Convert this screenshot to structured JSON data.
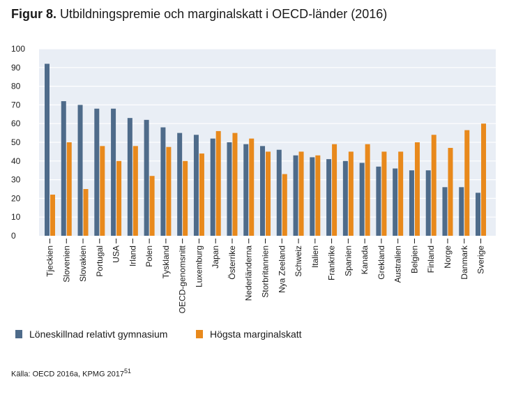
{
  "figure": {
    "label": "Figur 8.",
    "title": "Utbildningspremie och marginalskatt i OECD-länder (2016)"
  },
  "source": {
    "text": "Källa: OECD 2016a, KPMG 2017",
    "footnote": "51"
  },
  "colors": {
    "series1": "#4e6b8a",
    "series2": "#e8891c",
    "plot_bg": "#e9eef5",
    "grid": "#ffffff"
  },
  "chart_data": {
    "type": "bar",
    "title": "Utbildningspremie och marginalskatt i OECD-länder (2016)",
    "xlabel": "",
    "ylabel": "",
    "ylim": [
      0,
      100
    ],
    "yticks": [
      0,
      10,
      20,
      30,
      40,
      50,
      60,
      70,
      80,
      90,
      100
    ],
    "grid": true,
    "legend_position": "bottom",
    "categories": [
      "Tjeckien",
      "Slovenien",
      "Slovakien",
      "Portugal",
      "USA",
      "Irland",
      "Polen",
      "Tyskland",
      "OECD-genomsnitt",
      "Luxemburg",
      "Japan",
      "Österrike",
      "Nederländerna",
      "Storbritannien",
      "Nya Zeeland",
      "Schweiz",
      "Italien",
      "Frankrike",
      "Spanien",
      "Kanada",
      "Grekland",
      "Australien",
      "Belgien",
      "Finland",
      "Norge",
      "Danmark",
      "Sverige"
    ],
    "series": [
      {
        "name": "Löneskillnad relativt gymnasium",
        "values": [
          92,
          72,
          70,
          68,
          68,
          63,
          62,
          58,
          55,
          54,
          52,
          50,
          49,
          48,
          46,
          43,
          42,
          41,
          40,
          39,
          37,
          36,
          35,
          35,
          26,
          26,
          23
        ]
      },
      {
        "name": "Högsta marginalskatt",
        "values": [
          22,
          50,
          25,
          48,
          40,
          48,
          32,
          47.5,
          40,
          44,
          56,
          55,
          52,
          45,
          33,
          45,
          43,
          49,
          45,
          49,
          45,
          45,
          50,
          54,
          47,
          56.5,
          60
        ]
      }
    ]
  }
}
